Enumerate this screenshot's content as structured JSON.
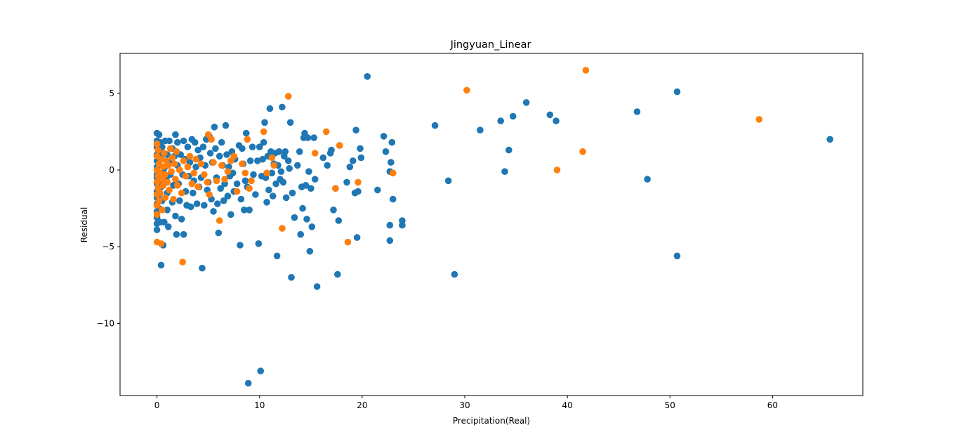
{
  "chart_data": {
    "type": "scatter",
    "title": "Jingyuan_Linear",
    "xlabel": "Precipitation(Real)",
    "ylabel": "Residual",
    "xlim": [
      -3.6,
      68.8
    ],
    "ylim": [
      -14.7,
      7.6
    ],
    "xticks": [
      0,
      10,
      20,
      30,
      40,
      50,
      60
    ],
    "yticks": [
      -10,
      -5,
      0,
      5
    ],
    "ytick_labels": [
      "−10",
      "−5",
      "0",
      "5"
    ],
    "grid": false,
    "series": [
      {
        "color": "#1f77b4",
        "points": [
          [
            0.0,
            -0.3
          ],
          [
            0.0,
            2.4
          ],
          [
            0.0,
            1.9
          ],
          [
            0.0,
            1.5
          ],
          [
            0.0,
            1.0
          ],
          [
            0.0,
            0.6
          ],
          [
            0.0,
            0.2
          ],
          [
            0.0,
            -0.5
          ],
          [
            0.0,
            -0.9
          ],
          [
            0.0,
            -1.4
          ],
          [
            0.0,
            -1.8
          ],
          [
            0.0,
            -2.2
          ],
          [
            0.0,
            -2.7
          ],
          [
            0.0,
            -3.1
          ],
          [
            0.0,
            -3.5
          ],
          [
            0.0,
            -3.9
          ],
          [
            0.2,
            2.3
          ],
          [
            0.2,
            1.2
          ],
          [
            0.2,
            0.4
          ],
          [
            0.2,
            -0.7
          ],
          [
            0.2,
            -1.6
          ],
          [
            0.2,
            -2.5
          ],
          [
            0.3,
            1.8
          ],
          [
            0.3,
            -3.4
          ],
          [
            0.4,
            0.8
          ],
          [
            0.4,
            -1.1
          ],
          [
            0.4,
            -6.2
          ],
          [
            0.5,
            1.5
          ],
          [
            0.5,
            -2.0
          ],
          [
            0.6,
            -4.9
          ],
          [
            0.7,
            0.1
          ],
          [
            0.7,
            -3.4
          ],
          [
            0.8,
            1.9
          ],
          [
            0.9,
            -0.6
          ],
          [
            1.0,
            1.0
          ],
          [
            1.0,
            -1.5
          ],
          [
            1.0,
            -2.6
          ],
          [
            1.1,
            -3.7
          ],
          [
            1.2,
            1.9
          ],
          [
            1.3,
            -0.3
          ],
          [
            1.4,
            0.6
          ],
          [
            1.5,
            1.4
          ],
          [
            1.5,
            -2.1
          ],
          [
            1.6,
            -1.0
          ],
          [
            1.7,
            0.9
          ],
          [
            1.8,
            2.3
          ],
          [
            1.8,
            -3.0
          ],
          [
            1.9,
            -4.2
          ],
          [
            2.0,
            1.8
          ],
          [
            2.0,
            0.3
          ],
          [
            2.1,
            -0.9
          ],
          [
            2.2,
            -2.0
          ],
          [
            2.3,
            1.0
          ],
          [
            2.4,
            -3.2
          ],
          [
            2.5,
            -0.3
          ],
          [
            2.6,
            1.9
          ],
          [
            2.6,
            -4.2
          ],
          [
            2.7,
            0.7
          ],
          [
            2.8,
            -1.4
          ],
          [
            2.9,
            -2.3
          ],
          [
            3.0,
            1.5
          ],
          [
            3.1,
            -0.4
          ],
          [
            3.2,
            0.5
          ],
          [
            3.3,
            -2.4
          ],
          [
            3.4,
            2.0
          ],
          [
            3.5,
            -1.5
          ],
          [
            3.6,
            -0.7
          ],
          [
            3.7,
            1.8
          ],
          [
            3.8,
            0.2
          ],
          [
            3.9,
            -2.2
          ],
          [
            4.0,
            1.3
          ],
          [
            4.1,
            -1.1
          ],
          [
            4.2,
            0.8
          ],
          [
            4.3,
            -0.5
          ],
          [
            4.4,
            -6.4
          ],
          [
            4.5,
            1.5
          ],
          [
            4.6,
            -2.3
          ],
          [
            4.7,
            0.3
          ],
          [
            4.8,
            2.0
          ],
          [
            4.9,
            -1.3
          ],
          [
            5.0,
            -0.8
          ],
          [
            5.1,
            2.2
          ],
          [
            5.2,
            1.1
          ],
          [
            5.3,
            -1.9
          ],
          [
            5.4,
            0.5
          ],
          [
            5.5,
            -2.7
          ],
          [
            5.6,
            2.8
          ],
          [
            5.7,
            1.4
          ],
          [
            5.8,
            -0.5
          ],
          [
            5.9,
            -2.2
          ],
          [
            6.0,
            -4.1
          ],
          [
            6.1,
            0.9
          ],
          [
            6.2,
            -1.2
          ],
          [
            6.3,
            1.8
          ],
          [
            6.4,
            0.3
          ],
          [
            6.5,
            -2.0
          ],
          [
            6.6,
            -0.9
          ],
          [
            6.7,
            2.9
          ],
          [
            6.8,
            1.0
          ],
          [
            6.9,
            -1.7
          ],
          [
            7.0,
            0.2
          ],
          [
            7.1,
            -0.4
          ],
          [
            7.2,
            -2.9
          ],
          [
            7.3,
            1.2
          ],
          [
            7.4,
            -0.2
          ],
          [
            7.5,
            -1.4
          ],
          [
            7.6,
            0.7
          ],
          [
            7.8,
            -0.9
          ],
          [
            8.0,
            1.6
          ],
          [
            8.1,
            -4.9
          ],
          [
            8.2,
            -1.9
          ],
          [
            8.3,
            1.4
          ],
          [
            8.4,
            0.4
          ],
          [
            8.5,
            -2.6
          ],
          [
            8.6,
            -0.7
          ],
          [
            8.7,
            2.4
          ],
          [
            8.8,
            -1.1
          ],
          [
            8.9,
            -13.9
          ],
          [
            9.0,
            -2.6
          ],
          [
            9.1,
            0.6
          ],
          [
            9.3,
            1.5
          ],
          [
            9.4,
            -0.3
          ],
          [
            9.6,
            -1.6
          ],
          [
            9.8,
            0.6
          ],
          [
            9.9,
            -4.8
          ],
          [
            10.0,
            1.5
          ],
          [
            10.1,
            -13.1
          ],
          [
            10.2,
            -0.4
          ],
          [
            10.3,
            0.7
          ],
          [
            10.4,
            1.8
          ],
          [
            10.5,
            3.1
          ],
          [
            10.6,
            -0.5
          ],
          [
            10.7,
            -2.1
          ],
          [
            10.8,
            0.9
          ],
          [
            10.9,
            -1.3
          ],
          [
            11.0,
            4.0
          ],
          [
            11.1,
            1.2
          ],
          [
            11.2,
            -0.2
          ],
          [
            11.3,
            -1.7
          ],
          [
            11.4,
            0.4
          ],
          [
            11.5,
            1.1
          ],
          [
            11.6,
            -0.9
          ],
          [
            11.7,
            -5.6
          ],
          [
            11.8,
            0.3
          ],
          [
            11.9,
            1.2
          ],
          [
            12.0,
            -0.6
          ],
          [
            12.1,
            -0.1
          ],
          [
            12.2,
            4.1
          ],
          [
            12.3,
            -0.8
          ],
          [
            12.4,
            0.9
          ],
          [
            12.5,
            1.2
          ],
          [
            12.6,
            -1.8
          ],
          [
            12.8,
            0.6
          ],
          [
            12.9,
            0.1
          ],
          [
            13.0,
            3.1
          ],
          [
            13.1,
            -7.0
          ],
          [
            13.2,
            -1.5
          ],
          [
            13.4,
            -3.1
          ],
          [
            13.7,
            0.3
          ],
          [
            13.9,
            1.2
          ],
          [
            14.0,
            -4.2
          ],
          [
            14.1,
            -1.1
          ],
          [
            14.2,
            -2.5
          ],
          [
            14.3,
            2.1
          ],
          [
            14.4,
            2.4
          ],
          [
            14.5,
            -1.0
          ],
          [
            14.6,
            -3.2
          ],
          [
            14.7,
            2.1
          ],
          [
            14.8,
            -0.1
          ],
          [
            14.9,
            -5.3
          ],
          [
            15.0,
            -1.2
          ],
          [
            15.1,
            -3.7
          ],
          [
            15.3,
            2.1
          ],
          [
            15.4,
            -0.6
          ],
          [
            15.6,
            -7.6
          ],
          [
            16.2,
            0.8
          ],
          [
            16.6,
            0.3
          ],
          [
            16.9,
            1.1
          ],
          [
            17.0,
            1.3
          ],
          [
            17.2,
            -2.6
          ],
          [
            17.4,
            -1.2
          ],
          [
            17.6,
            -6.8
          ],
          [
            17.7,
            -3.3
          ],
          [
            17.8,
            1.6
          ],
          [
            18.5,
            -0.8
          ],
          [
            18.8,
            0.2
          ],
          [
            19.1,
            0.6
          ],
          [
            19.3,
            -1.5
          ],
          [
            19.4,
            2.6
          ],
          [
            19.5,
            -4.4
          ],
          [
            19.6,
            -1.4
          ],
          [
            19.8,
            1.4
          ],
          [
            19.9,
            0.8
          ],
          [
            20.5,
            6.1
          ],
          [
            21.5,
            -1.3
          ],
          [
            22.1,
            2.2
          ],
          [
            22.3,
            1.2
          ],
          [
            22.7,
            -0.1
          ],
          [
            22.7,
            -3.6
          ],
          [
            22.7,
            -4.6
          ],
          [
            22.8,
            0.5
          ],
          [
            22.9,
            1.8
          ],
          [
            23.0,
            -1.9
          ],
          [
            23.9,
            -3.3
          ],
          [
            23.9,
            -3.6
          ],
          [
            27.1,
            2.9
          ],
          [
            28.4,
            -0.7
          ],
          [
            29.0,
            -6.8
          ],
          [
            31.5,
            2.6
          ],
          [
            33.5,
            3.2
          ],
          [
            33.9,
            -0.1
          ],
          [
            34.3,
            1.3
          ],
          [
            34.7,
            3.5
          ],
          [
            36.0,
            4.4
          ],
          [
            38.3,
            3.6
          ],
          [
            38.9,
            3.2
          ],
          [
            46.8,
            3.8
          ],
          [
            47.8,
            -0.6
          ],
          [
            50.7,
            5.1
          ],
          [
            50.7,
            -5.6
          ],
          [
            65.6,
            2.0
          ]
        ]
      },
      {
        "color": "#ff7f0e",
        "points": [
          [
            0.0,
            -4.7
          ],
          [
            0.0,
            1.7
          ],
          [
            0.0,
            0.9
          ],
          [
            0.0,
            0.0
          ],
          [
            0.0,
            -0.8
          ],
          [
            0.0,
            -1.6
          ],
          [
            0.0,
            -2.3
          ],
          [
            0.0,
            -2.9
          ],
          [
            0.1,
            1.3
          ],
          [
            0.1,
            -0.4
          ],
          [
            0.1,
            -1.2
          ],
          [
            0.2,
            0.4
          ],
          [
            0.2,
            -2.0
          ],
          [
            0.3,
            -0.2
          ],
          [
            0.3,
            -1.5
          ],
          [
            0.4,
            0.7
          ],
          [
            0.4,
            -4.8
          ],
          [
            0.5,
            -0.6
          ],
          [
            0.5,
            -2.6
          ],
          [
            0.6,
            0.2
          ],
          [
            0.6,
            -1.0
          ],
          [
            0.7,
            1.1
          ],
          [
            0.8,
            -0.3
          ],
          [
            0.8,
            -1.8
          ],
          [
            0.9,
            0.6
          ],
          [
            1.0,
            -0.8
          ],
          [
            1.1,
            0.3
          ],
          [
            1.2,
            -1.3
          ],
          [
            1.3,
            1.4
          ],
          [
            1.4,
            -0.1
          ],
          [
            1.5,
            0.8
          ],
          [
            1.6,
            -1.9
          ],
          [
            1.7,
            0.4
          ],
          [
            1.8,
            -0.6
          ],
          [
            1.9,
            1.2
          ],
          [
            2.0,
            -1.0
          ],
          [
            2.2,
            0.0
          ],
          [
            2.4,
            -1.5
          ],
          [
            2.5,
            -6.0
          ],
          [
            2.6,
            0.6
          ],
          [
            2.8,
            -0.4
          ],
          [
            3.0,
            0.2
          ],
          [
            3.2,
            0.9
          ],
          [
            3.4,
            -0.9
          ],
          [
            3.6,
            -0.2
          ],
          [
            3.8,
            0.7
          ],
          [
            4.0,
            -1.1
          ],
          [
            4.3,
            0.4
          ],
          [
            4.6,
            -0.3
          ],
          [
            4.9,
            -0.8
          ],
          [
            5.0,
            2.3
          ],
          [
            5.1,
            -1.6
          ],
          [
            5.3,
            2.0
          ],
          [
            5.5,
            0.5
          ],
          [
            5.8,
            -0.7
          ],
          [
            6.1,
            -3.3
          ],
          [
            6.3,
            0.3
          ],
          [
            6.6,
            -0.6
          ],
          [
            6.9,
            -0.1
          ],
          [
            7.2,
            0.6
          ],
          [
            7.5,
            0.9
          ],
          [
            7.8,
            -1.4
          ],
          [
            8.3,
            0.4
          ],
          [
            8.6,
            -0.2
          ],
          [
            8.8,
            2.0
          ],
          [
            9.0,
            -1.2
          ],
          [
            9.2,
            -0.7
          ],
          [
            10.4,
            2.5
          ],
          [
            10.7,
            -0.2
          ],
          [
            11.2,
            0.8
          ],
          [
            11.4,
            0.3
          ],
          [
            12.2,
            -3.8
          ],
          [
            12.8,
            4.8
          ],
          [
            15.4,
            1.1
          ],
          [
            16.5,
            2.5
          ],
          [
            17.4,
            -1.2
          ],
          [
            17.8,
            1.6
          ],
          [
            18.6,
            -4.7
          ],
          [
            19.6,
            -0.8
          ],
          [
            23.0,
            -0.2
          ],
          [
            30.2,
            5.2
          ],
          [
            39.0,
            0.0
          ],
          [
            41.5,
            1.2
          ],
          [
            41.8,
            6.5
          ],
          [
            58.7,
            3.3
          ]
        ]
      }
    ]
  }
}
